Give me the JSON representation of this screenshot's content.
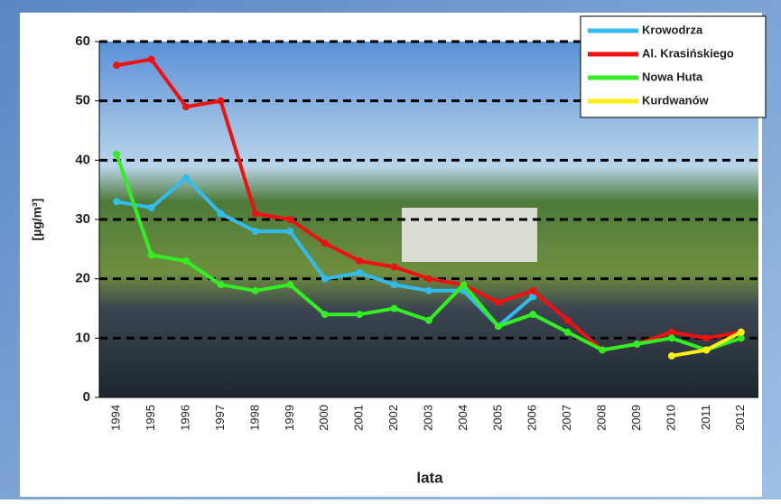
{
  "chart_data": {
    "type": "line",
    "x_label": "lata",
    "y_label": "[µg/m³]",
    "categories": [
      "1994",
      "1995",
      "1996",
      "1997",
      "1998",
      "1999",
      "2000",
      "2001",
      "2002",
      "2003",
      "2004",
      "2005",
      "2006",
      "2007",
      "2008",
      "2009",
      "2010",
      "2011",
      "2012"
    ],
    "series": [
      {
        "name": "Krowodrza",
        "color": "#33bbee",
        "values": [
          33,
          32,
          37,
          31,
          28,
          28,
          20,
          21,
          19,
          18,
          18,
          12,
          17,
          null,
          null,
          null,
          null,
          null,
          null
        ]
      },
      {
        "name": "Al. Krasińskiego",
        "color": "#ee1111",
        "values": [
          56,
          57,
          49,
          50,
          31,
          30,
          26,
          23,
          22,
          20,
          19,
          16,
          18,
          13,
          8,
          9,
          11,
          10,
          11
        ]
      },
      {
        "name": "Nowa Huta",
        "color": "#33ee22",
        "values": [
          41,
          24,
          23,
          19,
          18,
          19,
          14,
          14,
          15,
          13,
          19,
          12,
          14,
          11,
          8,
          9,
          10,
          8,
          10
        ]
      },
      {
        "name": "Kurdwanów",
        "color": "#ffee11",
        "values": [
          null,
          null,
          null,
          null,
          null,
          null,
          null,
          null,
          null,
          null,
          null,
          null,
          null,
          null,
          null,
          null,
          7,
          8,
          11
        ]
      }
    ],
    "ylim": [
      0,
      60
    ],
    "yticks": [
      0,
      10,
      20,
      30,
      40,
      50,
      60
    ],
    "grid": true,
    "legend": "top-right"
  }
}
